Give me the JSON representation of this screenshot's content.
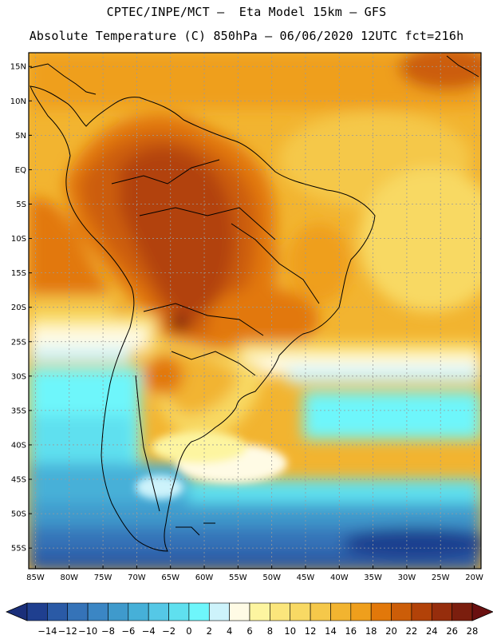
{
  "header": {
    "line1": "CPTEC/INPE/MCT –  Eta Model 15km – GFS",
    "line2": "Absolute Temperature (C) 850hPa – 06/06/2020 12UTC fct=216h"
  },
  "axes": {
    "lat_labels": [
      "15N",
      "10N",
      "5N",
      "EQ",
      "5S",
      "10S",
      "15S",
      "20S",
      "25S",
      "30S",
      "35S",
      "40S",
      "45S",
      "50S",
      "55S"
    ],
    "lat_values": [
      15,
      10,
      5,
      0,
      -5,
      -10,
      -15,
      -20,
      -25,
      -30,
      -35,
      -40,
      -45,
      -50,
      -55
    ],
    "lon_labels": [
      "85W",
      "80W",
      "75W",
      "70W",
      "65W",
      "60W",
      "55W",
      "50W",
      "45W",
      "40W",
      "35W",
      "30W",
      "25W",
      "20W"
    ],
    "lon_values": [
      -85,
      -80,
      -75,
      -70,
      -65,
      -60,
      -55,
      -50,
      -45,
      -40,
      -35,
      -30,
      -25,
      -20
    ],
    "lon_range": [
      -86,
      -19
    ],
    "lat_range": [
      -58,
      17
    ]
  },
  "colorbar": {
    "labels": [
      "-14",
      "-12",
      "-10",
      "-8",
      "-6",
      "-4",
      "-2",
      "0",
      "2",
      "4",
      "6",
      "8",
      "10",
      "12",
      "14",
      "16",
      "18",
      "20",
      "22",
      "24",
      "26",
      "28"
    ],
    "colors": [
      "#1f3f8f",
      "#2a5aa6",
      "#3573b8",
      "#3b86c4",
      "#3f9acc",
      "#46b0d8",
      "#55c8e6",
      "#5fe0ef",
      "#6ef6fb",
      "#cdf3fb",
      "#fffbe5",
      "#fdf5a0",
      "#fbe67c",
      "#f8d964",
      "#f5c84a",
      "#f2b430",
      "#ef9f1c",
      "#e2780a",
      "#cc5d08",
      "#b24208",
      "#962d0c",
      "#7b1e0e"
    ],
    "under_color": "#1a2f7a",
    "over_color": "#6a1010"
  }
}
